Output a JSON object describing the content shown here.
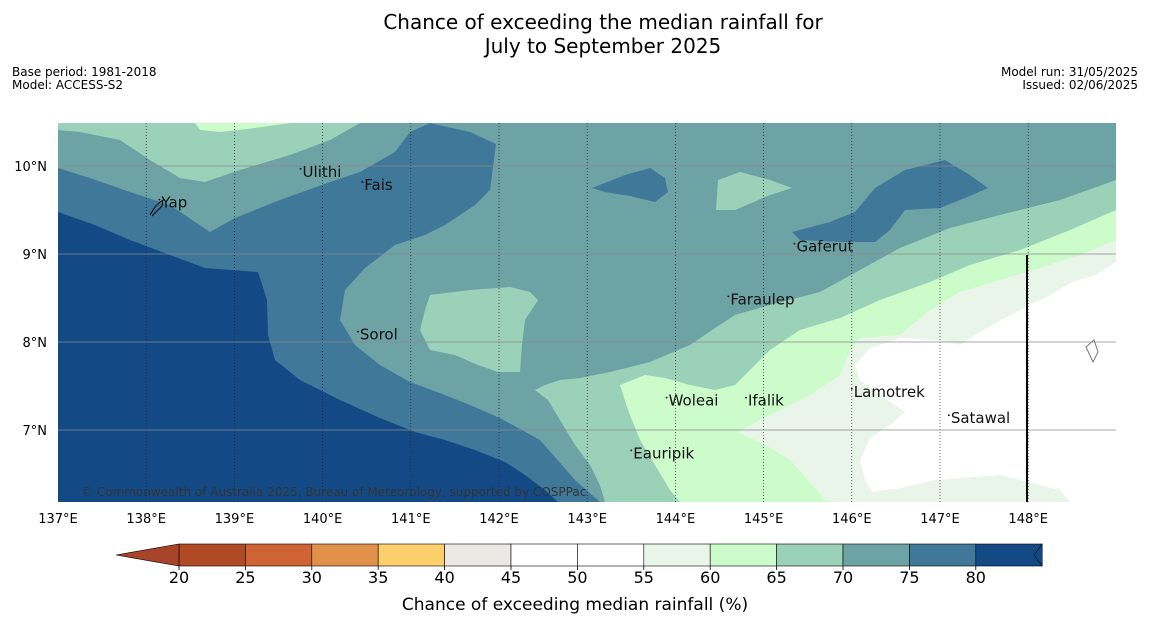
{
  "title": {
    "line1": "Chance of exceeding the median rainfall for",
    "line2": "July to September 2025"
  },
  "meta": {
    "base_period": "Base period: 1981-2018",
    "model": "Model: ACCESS-S2",
    "model_run": "Model run: 31/05/2025",
    "issued": "Issued: 02/06/2025"
  },
  "map": {
    "lon_labels": [
      "137°E",
      "138°E",
      "139°E",
      "140°E",
      "141°E",
      "142°E",
      "143°E",
      "144°E",
      "145°E",
      "146°E",
      "147°E",
      "148°E"
    ],
    "lon_values": [
      137,
      138,
      139,
      140,
      141,
      142,
      143,
      144,
      145,
      146,
      147,
      148
    ],
    "lat_labels": [
      "10°N",
      "9°N",
      "8°N",
      "7°N"
    ],
    "lat_values": [
      10,
      9,
      8,
      7
    ],
    "places": [
      {
        "name": "Yap",
        "lon": 138.15,
        "lat": 9.55
      },
      {
        "name": "Ulithi",
        "lon": 139.75,
        "lat": 9.9
      },
      {
        "name": "Fais",
        "lon": 140.45,
        "lat": 9.75
      },
      {
        "name": "Gaferut",
        "lon": 145.35,
        "lat": 9.05
      },
      {
        "name": "Faraulep",
        "lon": 144.6,
        "lat": 8.45
      },
      {
        "name": "Sorol",
        "lon": 140.4,
        "lat": 8.05
      },
      {
        "name": "Lamotrek",
        "lon": 146.0,
        "lat": 7.4
      },
      {
        "name": "Woleai",
        "lon": 143.9,
        "lat": 7.3
      },
      {
        "name": "Ifalik",
        "lon": 144.8,
        "lat": 7.3
      },
      {
        "name": "Satawal",
        "lon": 147.1,
        "lat": 7.1
      },
      {
        "name": "Eauripik",
        "lon": 143.5,
        "lat": 6.7
      }
    ],
    "copyright": "© Commonwealth of Australia 2025, Bureau of Meteorology, supported by COSPPac"
  },
  "colorbar": {
    "label": "Chance of exceeding median rainfall (%)",
    "ticks": [
      "20",
      "25",
      "30",
      "35",
      "40",
      "45",
      "50",
      "55",
      "60",
      "65",
      "70",
      "75",
      "80"
    ],
    "colors": [
      "#b04a25",
      "#cf6333",
      "#e2914a",
      "#fccf6b",
      "#ece8e4",
      "#ffffff",
      "#ffffff",
      "#eaf5ea",
      "#cbfcca",
      "#9cd1b9",
      "#6ea3a6",
      "#40789a",
      "#134a86"
    ],
    "under_color": "#a8442a",
    "over_color": "#134a86"
  }
}
